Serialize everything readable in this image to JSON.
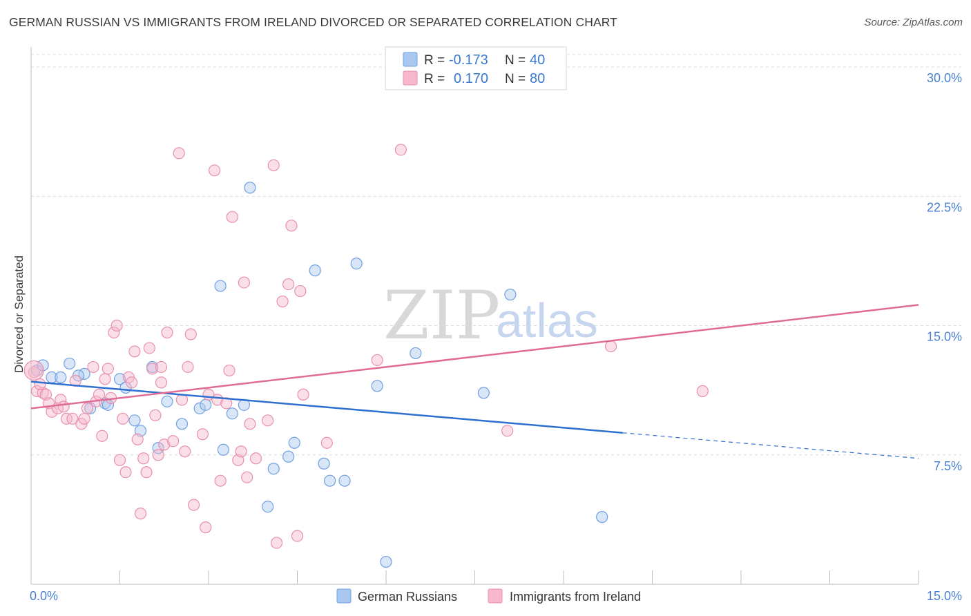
{
  "title": "GERMAN RUSSIAN VS IMMIGRANTS FROM IRELAND DIVORCED OR SEPARATED CORRELATION CHART",
  "source": "Source: ZipAtlas.com",
  "watermark": {
    "zip": "ZIP",
    "atlas": "atlas"
  },
  "legend": {
    "rows": [
      {
        "r_label": "R =",
        "r_value": "-0.173",
        "n_label": "N =",
        "n_value": "40",
        "color": "#a9c8f0"
      },
      {
        "r_label": "R =",
        "r_value": "0.170",
        "n_label": "N =",
        "n_value": "80",
        "color": "#f7b8cc"
      }
    ]
  },
  "bottom_legend": [
    {
      "label": "German Russians",
      "color": "#a9c8f0"
    },
    {
      "label": "Immigrants from Ireland",
      "color": "#f7b8cc"
    }
  ],
  "chart_data": {
    "type": "scatter",
    "title": "GERMAN RUSSIAN VS IMMIGRANTS FROM IRELAND DIVORCED OR SEPARATED CORRELATION CHART",
    "xlabel": "",
    "ylabel": "Divorced or Separated",
    "xlim": [
      0,
      15
    ],
    "ylim": [
      0,
      31.5
    ],
    "x_tick_labels": [
      {
        "value": 0,
        "label": "0.0%"
      },
      {
        "value": 15,
        "label": "15.0%"
      }
    ],
    "y_tick_labels": [
      {
        "value": 7.5,
        "label": "7.5%"
      },
      {
        "value": 15,
        "label": "15.0%"
      },
      {
        "value": 22.5,
        "label": "22.5%"
      },
      {
        "value": 30,
        "label": "30.0%"
      }
    ],
    "grid": true,
    "legend_position": "top-center",
    "series": [
      {
        "name": "German Russians",
        "color": "#6f9fe0",
        "fill": "#a9c8f0",
        "points": [
          [
            0.1,
            12.4
          ],
          [
            0.2,
            12.7
          ],
          [
            0.35,
            12.0
          ],
          [
            0.5,
            12.0
          ],
          [
            0.65,
            12.8
          ],
          [
            0.9,
            12.2
          ],
          [
            0.8,
            12.1
          ],
          [
            1.0,
            10.2
          ],
          [
            1.25,
            10.5
          ],
          [
            1.3,
            10.4
          ],
          [
            1.5,
            11.9
          ],
          [
            1.6,
            11.4
          ],
          [
            1.75,
            9.5
          ],
          [
            1.85,
            8.9
          ],
          [
            2.05,
            12.6
          ],
          [
            2.15,
            7.9
          ],
          [
            2.3,
            10.6
          ],
          [
            2.55,
            9.3
          ],
          [
            2.85,
            10.2
          ],
          [
            2.95,
            10.4
          ],
          [
            3.2,
            17.3
          ],
          [
            3.25,
            7.8
          ],
          [
            3.4,
            9.9
          ],
          [
            3.6,
            10.4
          ],
          [
            3.7,
            23.0
          ],
          [
            4.0,
            4.5
          ],
          [
            4.1,
            6.7
          ],
          [
            4.35,
            7.4
          ],
          [
            4.45,
            8.2
          ],
          [
            4.8,
            18.2
          ],
          [
            4.95,
            7.0
          ],
          [
            5.05,
            6.0
          ],
          [
            5.3,
            6.0
          ],
          [
            5.5,
            18.6
          ],
          [
            5.85,
            11.5
          ],
          [
            6.5,
            13.4
          ],
          [
            7.65,
            11.1
          ],
          [
            8.1,
            16.8
          ],
          [
            9.65,
            3.9
          ],
          [
            6.0,
            1.3
          ]
        ]
      },
      {
        "name": "Immigrants from Ireland",
        "color": "#e890ac",
        "fill": "#f7b8cc",
        "points": [
          [
            0.05,
            12.3
          ],
          [
            0.1,
            11.2
          ],
          [
            0.2,
            11.1
          ],
          [
            0.25,
            11.0
          ],
          [
            0.3,
            10.5
          ],
          [
            0.35,
            10.0
          ],
          [
            0.45,
            10.2
          ],
          [
            0.5,
            10.7
          ],
          [
            0.55,
            10.3
          ],
          [
            0.6,
            9.6
          ],
          [
            0.7,
            9.6
          ],
          [
            0.75,
            11.8
          ],
          [
            0.85,
            9.3
          ],
          [
            0.9,
            9.6
          ],
          [
            0.95,
            10.2
          ],
          [
            1.05,
            12.6
          ],
          [
            1.1,
            10.6
          ],
          [
            1.15,
            11.0
          ],
          [
            1.2,
            8.6
          ],
          [
            1.25,
            11.9
          ],
          [
            1.3,
            12.5
          ],
          [
            1.35,
            10.8
          ],
          [
            1.4,
            14.6
          ],
          [
            1.5,
            7.2
          ],
          [
            1.55,
            9.6
          ],
          [
            1.6,
            6.5
          ],
          [
            1.65,
            12.0
          ],
          [
            1.7,
            11.7
          ],
          [
            1.75,
            13.5
          ],
          [
            1.8,
            8.4
          ],
          [
            1.85,
            4.1
          ],
          [
            1.9,
            7.3
          ],
          [
            1.95,
            6.5
          ],
          [
            2.0,
            13.7
          ],
          [
            2.05,
            12.5
          ],
          [
            2.1,
            9.8
          ],
          [
            2.15,
            7.5
          ],
          [
            2.2,
            11.7
          ],
          [
            2.25,
            8.1
          ],
          [
            2.3,
            14.6
          ],
          [
            2.4,
            8.3
          ],
          [
            2.5,
            25.0
          ],
          [
            2.55,
            10.7
          ],
          [
            2.6,
            7.7
          ],
          [
            2.65,
            12.6
          ],
          [
            2.7,
            14.5
          ],
          [
            2.75,
            4.6
          ],
          [
            2.9,
            8.7
          ],
          [
            2.95,
            3.3
          ],
          [
            3.0,
            11.0
          ],
          [
            3.1,
            24.0
          ],
          [
            3.15,
            10.7
          ],
          [
            3.2,
            6.0
          ],
          [
            3.3,
            10.5
          ],
          [
            3.35,
            12.4
          ],
          [
            3.4,
            21.3
          ],
          [
            3.5,
            7.2
          ],
          [
            3.55,
            7.7
          ],
          [
            3.6,
            17.5
          ],
          [
            3.65,
            6.2
          ],
          [
            3.7,
            9.3
          ],
          [
            3.8,
            7.3
          ],
          [
            4.0,
            9.5
          ],
          [
            4.1,
            24.3
          ],
          [
            4.15,
            2.4
          ],
          [
            4.25,
            16.4
          ],
          [
            4.35,
            17.4
          ],
          [
            4.4,
            20.8
          ],
          [
            4.5,
            2.8
          ],
          [
            4.55,
            17.0
          ],
          [
            4.6,
            11.0
          ],
          [
            5.0,
            8.2
          ],
          [
            5.85,
            13.0
          ],
          [
            6.25,
            25.2
          ],
          [
            8.05,
            8.9
          ],
          [
            9.8,
            13.8
          ],
          [
            11.35,
            11.2
          ],
          [
            1.45,
            15.0
          ],
          [
            2.2,
            12.6
          ],
          [
            0.15,
            11.6
          ]
        ]
      }
    ],
    "trend_lines": [
      {
        "series": "German Russians",
        "color": "#2e6fcf",
        "x_start": 0,
        "y_start": 11.75,
        "x_solid_end": 10.0,
        "x_end": 15,
        "y_end": 7.3
      },
      {
        "series": "Immigrants from Ireland",
        "color": "#e06b95",
        "x_start": 0,
        "y_start": 10.2,
        "x_end": 15,
        "y_end": 16.2
      }
    ]
  }
}
